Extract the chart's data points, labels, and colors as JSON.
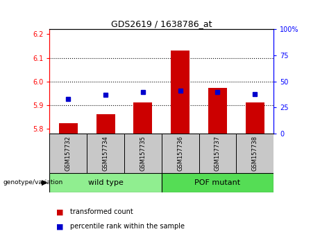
{
  "title": "GDS2619 / 1638786_at",
  "samples": [
    "GSM157732",
    "GSM157734",
    "GSM157735",
    "GSM157736",
    "GSM157737",
    "GSM157738"
  ],
  "red_values": [
    5.825,
    5.862,
    5.912,
    6.132,
    5.972,
    5.912
  ],
  "blue_percentiles": [
    33,
    37,
    40,
    41,
    40,
    38
  ],
  "ylim": [
    5.78,
    6.22
  ],
  "yticks_left": [
    5.8,
    5.9,
    6.0,
    6.1,
    6.2
  ],
  "yticks_right": [
    0,
    25,
    50,
    75,
    100
  ],
  "group_info": [
    {
      "label": "wild type",
      "start": 0,
      "end": 2,
      "color": "#90ee90"
    },
    {
      "label": "POF mutant",
      "start": 3,
      "end": 5,
      "color": "#55dd55"
    }
  ],
  "bar_color": "#cc0000",
  "dot_color": "#0000cc",
  "sample_bg": "#c8c8c8",
  "legend_red_label": "transformed count",
  "legend_blue_label": "percentile rank within the sample",
  "genotype_label": "genotype/variation",
  "ybase": 5.78
}
